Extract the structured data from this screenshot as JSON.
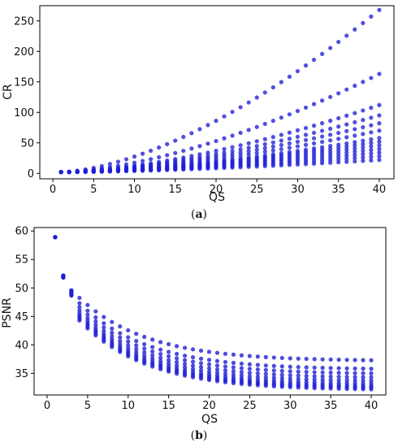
{
  "chart_data": [
    {
      "type": "scatter",
      "caption_letter": "a",
      "xlabel": "QS",
      "ylabel": "CR",
      "xlim": [
        -1.6,
        41.8
      ],
      "ylim": [
        -9,
        275
      ],
      "xticks": [
        0,
        5,
        10,
        15,
        20,
        25,
        30,
        35,
        40
      ],
      "yticks": [
        0,
        50,
        100,
        150,
        200,
        250
      ],
      "grid": false,
      "legend": "none",
      "marker_color": "#1f1fd6",
      "qs_values": [
        1,
        2,
        3,
        4,
        5,
        6,
        7,
        8,
        9,
        10,
        11,
        12,
        13,
        14,
        15,
        16,
        17,
        18,
        19,
        20,
        21,
        22,
        23,
        24,
        25,
        26,
        27,
        28,
        29,
        30,
        31,
        32,
        33,
        34,
        35,
        36,
        37,
        38,
        39,
        40
      ],
      "series_end_values": [
        22,
        28,
        34,
        40,
        46,
        52,
        58,
        70,
        82,
        95,
        112,
        163,
        268
      ],
      "growth_exponent": 1.6,
      "base_value_at_qs1": 2
    },
    {
      "type": "scatter",
      "caption_letter": "b",
      "xlabel": "QS",
      "ylabel": "PSNR",
      "xlim": [
        -1.6,
        41.8
      ],
      "ylim": [
        31.2,
        60.6
      ],
      "xticks": [
        0,
        5,
        10,
        15,
        20,
        25,
        30,
        35,
        40
      ],
      "yticks": [
        35,
        40,
        45,
        50,
        55,
        60
      ],
      "grid": false,
      "legend": "none",
      "marker_color": "#1f1fd6",
      "qs_values": [
        1,
        2,
        3,
        4,
        5,
        6,
        7,
        8,
        9,
        10,
        11,
        12,
        13,
        14,
        15,
        16,
        17,
        18,
        19,
        20,
        21,
        22,
        23,
        24,
        25,
        26,
        27,
        28,
        29,
        30,
        31,
        32,
        33,
        34,
        35,
        36,
        37,
        38,
        39,
        40
      ],
      "psnr_at_qs1": 58.9,
      "series_end_values": [
        37.3,
        35.8,
        35.0,
        34.3,
        33.7,
        33.2,
        32.8,
        32.5,
        32.2
      ],
      "series_start_values_qs5": [
        47.0,
        46.0,
        45.3,
        44.7,
        44.2,
        43.8,
        43.5,
        43.2,
        42.9
      ],
      "decay_rate": 0.12
    }
  ]
}
